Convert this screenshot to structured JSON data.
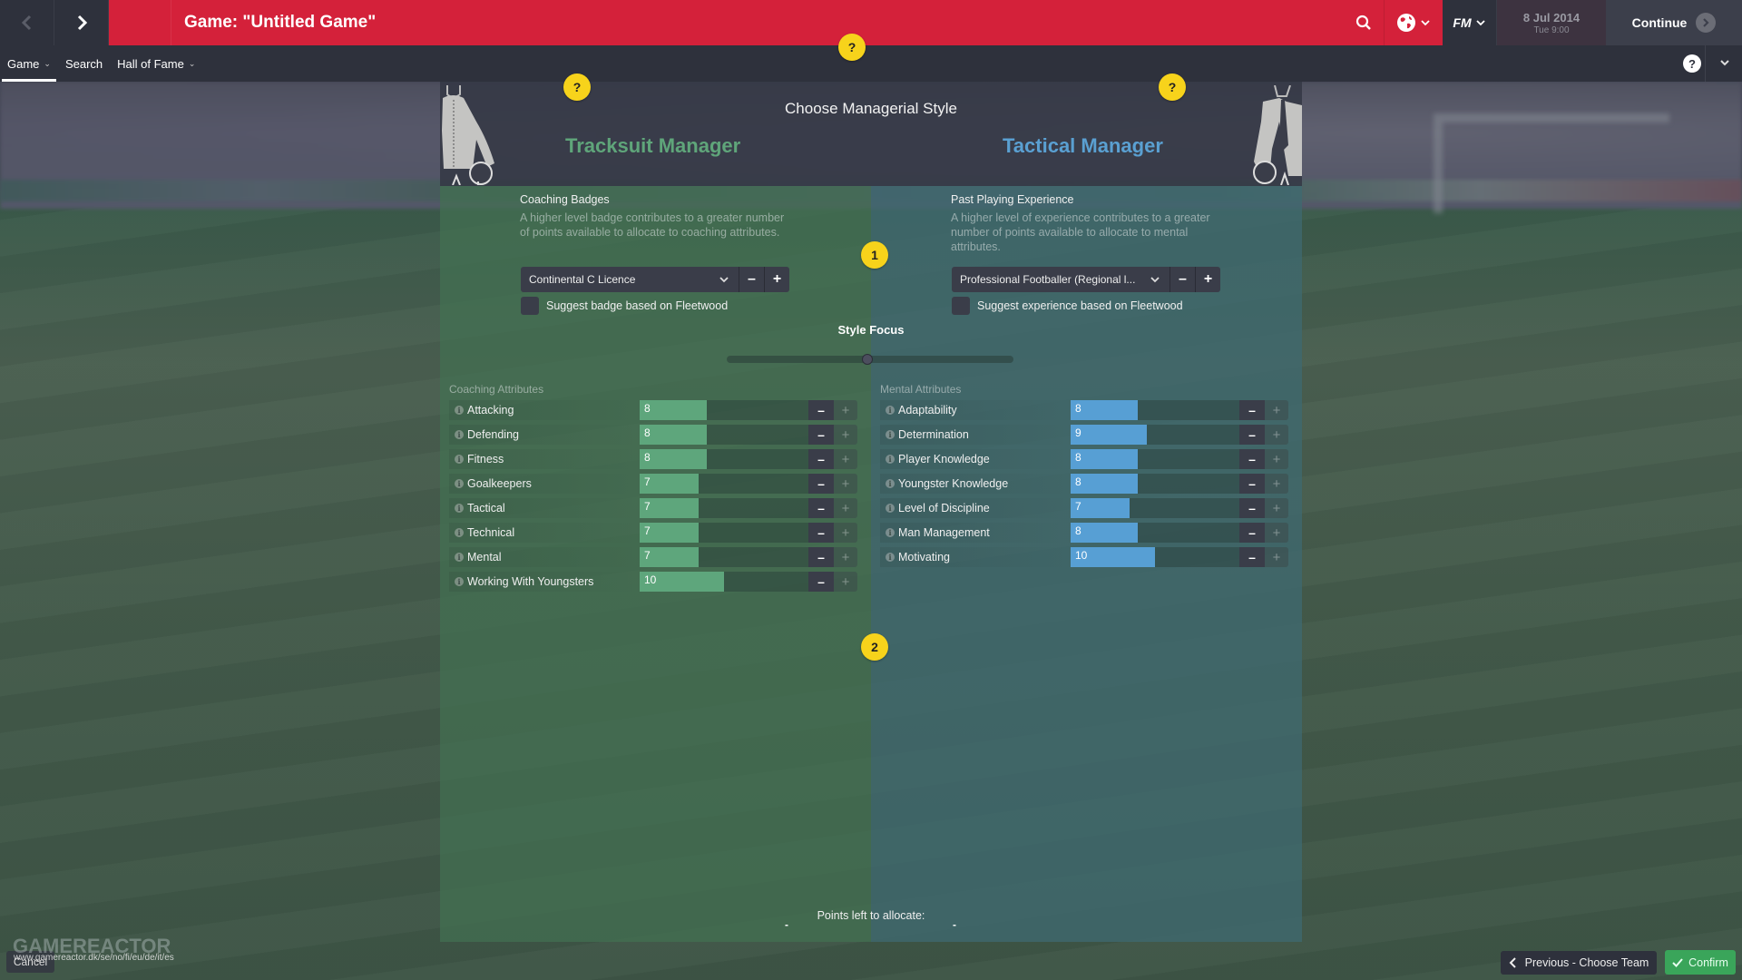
{
  "header": {
    "title": "Game: \"Untitled Game\"",
    "date": "8 Jul 2014",
    "time": "Tue 9:00",
    "continue_label": "Continue",
    "fm_label": "FM"
  },
  "menu": {
    "items": [
      {
        "label": "Game",
        "has_dropdown": true,
        "active": true
      },
      {
        "label": "Search",
        "has_dropdown": false,
        "active": false
      },
      {
        "label": "Hall of Fame",
        "has_dropdown": true,
        "active": false
      }
    ]
  },
  "help_markers": {
    "question": "?",
    "step1": "1",
    "step2": "2"
  },
  "panel": {
    "title": "Choose Managerial Style",
    "left_style": "Tracksuit Manager",
    "right_style": "Tactical Manager",
    "coaching_badges": {
      "title": "Coaching Badges",
      "description": "A higher level badge contributes to a greater number of points available to allocate to coaching attributes.",
      "selected": "Continental C Licence",
      "checkbox_label": "Suggest badge based on Fleetwood",
      "checked": false
    },
    "playing_experience": {
      "title": "Past Playing Experience",
      "description": "A higher level of experience contributes to a greater number of points available to allocate to mental attributes.",
      "selected": "Professional Footballer (Regional l...",
      "checkbox_label": "Suggest experience based on Fleetwood",
      "checked": false
    },
    "style_focus": {
      "label": "Style Focus",
      "position_pct": 50
    },
    "coaching_attributes": {
      "header": "Coaching Attributes",
      "items": [
        {
          "label": "Attacking",
          "value": "8"
        },
        {
          "label": "Defending",
          "value": "8"
        },
        {
          "label": "Fitness",
          "value": "8"
        },
        {
          "label": "Goalkeepers",
          "value": "7"
        },
        {
          "label": "Tactical",
          "value": "7"
        },
        {
          "label": "Technical",
          "value": "7"
        },
        {
          "label": "Mental",
          "value": "7"
        },
        {
          "label": "Working With Youngsters",
          "value": "10"
        }
      ]
    },
    "mental_attributes": {
      "header": "Mental Attributes",
      "items": [
        {
          "label": "Adaptability",
          "value": "8"
        },
        {
          "label": "Determination",
          "value": "9"
        },
        {
          "label": "Player Knowledge",
          "value": "8"
        },
        {
          "label": "Youngster Knowledge",
          "value": "8"
        },
        {
          "label": "Level of Discipline",
          "value": "7"
        },
        {
          "label": "Man Management",
          "value": "8"
        },
        {
          "label": "Motivating",
          "value": "10"
        }
      ]
    },
    "points_left": {
      "label": "Points left to allocate:",
      "coaching": "-",
      "mental": "-"
    }
  },
  "footer": {
    "cancel_label": "Cancel",
    "previous_label": "Previous - Choose Team",
    "confirm_label": "Confirm",
    "watermark": "GAMEREACTOR",
    "watermark_url": "www.gamereactor.dk/se/no/fi/eu/de/it/es"
  },
  "colors": {
    "brand_red": "#d4213a",
    "tracksuit_green": "#5fa57a",
    "tactical_blue": "#5aa0d2",
    "bar_green": "#5ea67c",
    "bar_blue": "#579fd4",
    "help_yellow": "#f7d31b",
    "confirm_green": "#3aa55a"
  }
}
